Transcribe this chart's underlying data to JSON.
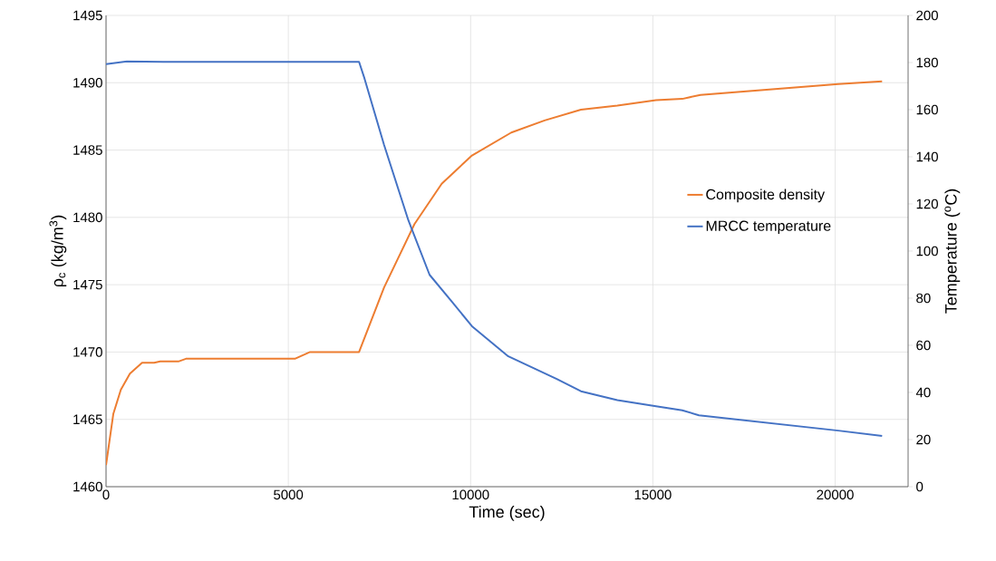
{
  "chart_data": {
    "type": "line",
    "xlabel": "Time (sec)",
    "ylabel": "ρ$_{c}$ (kg/m$^{3}$)",
    "y2label": "Temperature ($^{o}$C)",
    "xlim": [
      0,
      22000
    ],
    "xticks": [
      0,
      5000,
      10000,
      15000,
      20000
    ],
    "ylim": [
      1460,
      1495
    ],
    "yticks": [
      1460,
      1465,
      1470,
      1475,
      1480,
      1485,
      1490,
      1495
    ],
    "y2lim": [
      0,
      200
    ],
    "y2ticks": [
      0,
      20,
      40,
      60,
      80,
      100,
      120,
      140,
      160,
      180,
      200
    ],
    "grid": true,
    "legend": "right",
    "line_style": "solid",
    "marker": "none",
    "series": [
      {
        "name": "Composite density",
        "color": "#ed7d31",
        "x": [
          0,
          199,
          406,
          655,
          988,
          1320,
          1486,
          1984,
          2192,
          5180,
          5596,
          6940,
          7627,
          8460,
          9207,
          10037,
          11116,
          12030,
          13026,
          14025,
          15085,
          15807,
          16305,
          20083,
          21287
        ],
        "values": [
          1461.6,
          1465.4,
          1467.2,
          1468.4,
          1469.2,
          1469.2,
          1469.3,
          1469.3,
          1469.5,
          1469.5,
          1470.0,
          1470.0,
          1474.8,
          1479.5,
          1482.5,
          1484.6,
          1486.3,
          1487.2,
          1488.0,
          1488.3,
          1488.7,
          1488.8,
          1489.1,
          1489.9,
          1490.1
        ]
      },
      {
        "name": "MRCC temperature",
        "color": "#4472c4",
        "axis": "y2",
        "x": [
          0,
          573,
          1569,
          6940,
          7090,
          7627,
          8294,
          8875,
          9497,
          10037,
          11034,
          12361,
          13026,
          14025,
          15085,
          15807,
          16263,
          20083,
          21287
        ],
        "values": [
          179.3,
          180.5,
          180.3,
          180.3,
          173.2,
          145,
          113,
          89.9,
          78.3,
          68.1,
          55.3,
          45.7,
          40.5,
          36.7,
          34.1,
          32.4,
          30.3,
          23.8,
          21.5
        ]
      }
    ]
  }
}
